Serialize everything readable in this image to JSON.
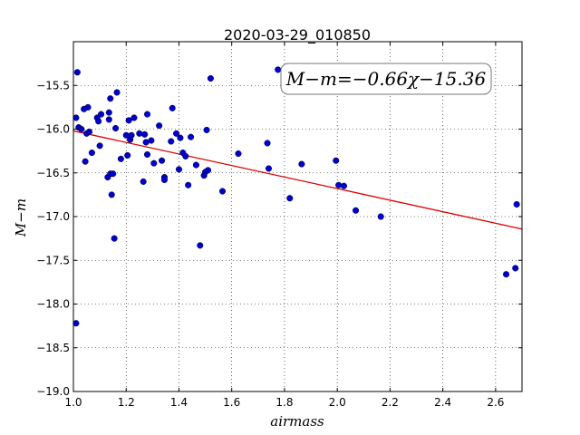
{
  "chart_data": {
    "type": "scatter",
    "title": "2020-03-29_010850",
    "xlabel": "airmass",
    "ylabel": "M−m",
    "xlim": [
      1.0,
      2.7
    ],
    "ylim": [
      -19.0,
      -15.0
    ],
    "xticks": [
      1.0,
      1.2,
      1.4,
      1.6,
      1.8,
      2.0,
      2.2,
      2.4,
      2.6
    ],
    "xtick_labels": [
      "1.0",
      "1.2",
      "1.4",
      "1.6",
      "1.8",
      "2.0",
      "2.2",
      "2.4",
      "2.6"
    ],
    "yticks": [
      -15.5,
      -16.0,
      -16.5,
      -17.0,
      -17.5,
      -18.0,
      -18.5,
      -19.0
    ],
    "ytick_labels": [
      "−15.5",
      "−16.0",
      "−16.5",
      "−17.0",
      "−17.5",
      "−18.0",
      "−18.5",
      "−19.0"
    ],
    "grid": true,
    "point_color": "#0000cc",
    "fit_color": "#dd0000",
    "fit": {
      "slope": -0.66,
      "intercept": -15.36
    },
    "annotation": "M−m=−0.66χ−15.36",
    "annotation_position": "top-right",
    "points": [
      [
        1.01,
        -15.87
      ],
      [
        1.01,
        -18.22
      ],
      [
        1.015,
        -15.35
      ],
      [
        1.02,
        -15.98
      ],
      [
        1.03,
        -16.0
      ],
      [
        1.04,
        -15.77
      ],
      [
        1.045,
        -16.37
      ],
      [
        1.05,
        -16.05
      ],
      [
        1.055,
        -15.75
      ],
      [
        1.06,
        -16.03
      ],
      [
        1.07,
        -16.27
      ],
      [
        1.09,
        -15.87
      ],
      [
        1.095,
        -15.91
      ],
      [
        1.1,
        -16.19
      ],
      [
        1.105,
        -15.83
      ],
      [
        1.13,
        -16.55
      ],
      [
        1.135,
        -15.89
      ],
      [
        1.135,
        -15.81
      ],
      [
        1.14,
        -15.65
      ],
      [
        1.14,
        -16.51
      ],
      [
        1.145,
        -16.75
      ],
      [
        1.15,
        -16.51
      ],
      [
        1.155,
        -17.25
      ],
      [
        1.16,
        -15.99
      ],
      [
        1.165,
        -15.58
      ],
      [
        1.18,
        -16.34
      ],
      [
        1.2,
        -16.07
      ],
      [
        1.205,
        -16.3
      ],
      [
        1.21,
        -15.9
      ],
      [
        1.215,
        -16.12
      ],
      [
        1.22,
        -16.07
      ],
      [
        1.23,
        -15.87
      ],
      [
        1.25,
        -16.05
      ],
      [
        1.265,
        -16.6
      ],
      [
        1.27,
        -16.06
      ],
      [
        1.275,
        -16.15
      ],
      [
        1.28,
        -15.83
      ],
      [
        1.28,
        -16.29
      ],
      [
        1.295,
        -16.13
      ],
      [
        1.305,
        -16.39
      ],
      [
        1.325,
        -15.96
      ],
      [
        1.335,
        -16.36
      ],
      [
        1.345,
        -16.55
      ],
      [
        1.345,
        -16.58
      ],
      [
        1.37,
        -16.14
      ],
      [
        1.375,
        -15.76
      ],
      [
        1.39,
        -16.05
      ],
      [
        1.4,
        -16.46
      ],
      [
        1.405,
        -16.1
      ],
      [
        1.415,
        -16.27
      ],
      [
        1.425,
        -16.31
      ],
      [
        1.435,
        -16.64
      ],
      [
        1.445,
        -16.09
      ],
      [
        1.465,
        -16.41
      ],
      [
        1.48,
        -17.33
      ],
      [
        1.495,
        -16.53
      ],
      [
        1.5,
        -16.49
      ],
      [
        1.505,
        -16.01
      ],
      [
        1.51,
        -16.47
      ],
      [
        1.52,
        -15.42
      ],
      [
        1.565,
        -16.71
      ],
      [
        1.625,
        -16.28
      ],
      [
        1.735,
        -16.16
      ],
      [
        1.74,
        -16.45
      ],
      [
        1.775,
        -15.32
      ],
      [
        1.82,
        -16.79
      ],
      [
        1.865,
        -16.4
      ],
      [
        1.995,
        -16.36
      ],
      [
        2.005,
        -16.64
      ],
      [
        2.025,
        -16.65
      ],
      [
        2.07,
        -16.93
      ],
      [
        2.165,
        -17.0
      ],
      [
        2.64,
        -17.66
      ],
      [
        2.675,
        -17.59
      ],
      [
        2.68,
        -16.86
      ]
    ]
  }
}
